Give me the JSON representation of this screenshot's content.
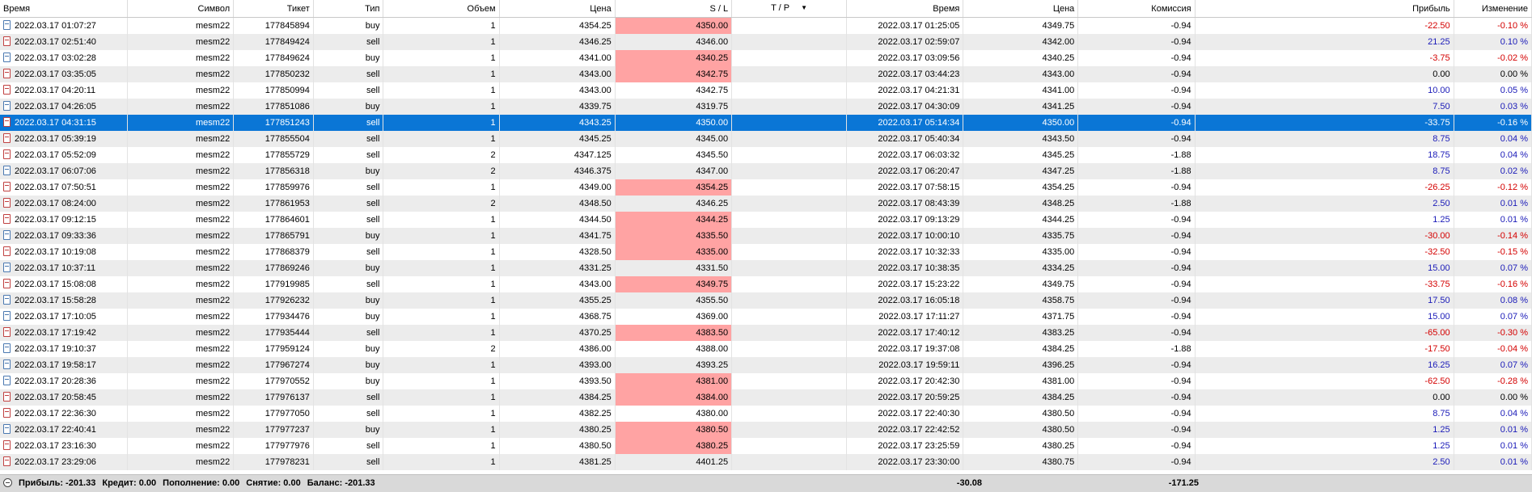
{
  "columns": {
    "time": "Время",
    "symbol": "Символ",
    "ticket": "Тикет",
    "type": "Тип",
    "volume": "Объем",
    "price": "Цена",
    "sl": "S / L",
    "tp": "T / P",
    "close_time": "Время",
    "close_price": "Цена",
    "commission": "Комиссия",
    "profit": "Прибыль",
    "change": "Изменение"
  },
  "sort_icon": "triangle-down-icon",
  "selected_row": 6,
  "colors": {
    "selection": "#0a76d6",
    "sl_hit": "#ffa3a3",
    "negative": "#d40000",
    "positive": "#1a1ab8"
  },
  "rows": [
    {
      "time": "2022.03.17 01:07:27",
      "symbol": "mesm22",
      "ticket": "177845894",
      "type": "buy",
      "volume": "1",
      "price": "4354.25",
      "sl": "4350.00",
      "sl_hit": true,
      "tp": "",
      "close_time": "2022.03.17 01:25:05",
      "close_price": "4349.75",
      "commission": "-0.94",
      "profit": "-22.50",
      "change": "-0.10 %"
    },
    {
      "time": "2022.03.17 02:51:40",
      "symbol": "mesm22",
      "ticket": "177849424",
      "type": "sell",
      "volume": "1",
      "price": "4346.25",
      "sl": "4346.00",
      "sl_hit": false,
      "tp": "",
      "close_time": "2022.03.17 02:59:07",
      "close_price": "4342.00",
      "commission": "-0.94",
      "profit": "21.25",
      "change": "0.10 %"
    },
    {
      "time": "2022.03.17 03:02:28",
      "symbol": "mesm22",
      "ticket": "177849624",
      "type": "buy",
      "volume": "1",
      "price": "4341.00",
      "sl": "4340.25",
      "sl_hit": true,
      "tp": "",
      "close_time": "2022.03.17 03:09:56",
      "close_price": "4340.25",
      "commission": "-0.94",
      "profit": "-3.75",
      "change": "-0.02 %"
    },
    {
      "time": "2022.03.17 03:35:05",
      "symbol": "mesm22",
      "ticket": "177850232",
      "type": "sell",
      "volume": "1",
      "price": "4343.00",
      "sl": "4342.75",
      "sl_hit": true,
      "tp": "",
      "close_time": "2022.03.17 03:44:23",
      "close_price": "4343.00",
      "commission": "-0.94",
      "profit": "0.00",
      "change": "0.00 %"
    },
    {
      "time": "2022.03.17 04:20:11",
      "symbol": "mesm22",
      "ticket": "177850994",
      "type": "sell",
      "volume": "1",
      "price": "4343.00",
      "sl": "4342.75",
      "sl_hit": false,
      "tp": "",
      "close_time": "2022.03.17 04:21:31",
      "close_price": "4341.00",
      "commission": "-0.94",
      "profit": "10.00",
      "change": "0.05 %"
    },
    {
      "time": "2022.03.17 04:26:05",
      "symbol": "mesm22",
      "ticket": "177851086",
      "type": "buy",
      "volume": "1",
      "price": "4339.75",
      "sl": "4319.75",
      "sl_hit": false,
      "tp": "",
      "close_time": "2022.03.17 04:30:09",
      "close_price": "4341.25",
      "commission": "-0.94",
      "profit": "7.50",
      "change": "0.03 %"
    },
    {
      "time": "2022.03.17 04:31:15",
      "symbol": "mesm22",
      "ticket": "177851243",
      "type": "sell",
      "volume": "1",
      "price": "4343.25",
      "sl": "4350.00",
      "sl_hit": true,
      "tp": "",
      "close_time": "2022.03.17 05:14:34",
      "close_price": "4350.00",
      "commission": "-0.94",
      "profit": "-33.75",
      "change": "-0.16 %"
    },
    {
      "time": "2022.03.17 05:39:19",
      "symbol": "mesm22",
      "ticket": "177855504",
      "type": "sell",
      "volume": "1",
      "price": "4345.25",
      "sl": "4345.00",
      "sl_hit": false,
      "tp": "",
      "close_time": "2022.03.17 05:40:34",
      "close_price": "4343.50",
      "commission": "-0.94",
      "profit": "8.75",
      "change": "0.04 %"
    },
    {
      "time": "2022.03.17 05:52:09",
      "symbol": "mesm22",
      "ticket": "177855729",
      "type": "sell",
      "volume": "2",
      "price": "4347.125",
      "sl": "4345.50",
      "sl_hit": false,
      "tp": "",
      "close_time": "2022.03.17 06:03:32",
      "close_price": "4345.25",
      "commission": "-1.88",
      "profit": "18.75",
      "change": "0.04 %"
    },
    {
      "time": "2022.03.17 06:07:06",
      "symbol": "mesm22",
      "ticket": "177856318",
      "type": "buy",
      "volume": "2",
      "price": "4346.375",
      "sl": "4347.00",
      "sl_hit": false,
      "tp": "",
      "close_time": "2022.03.17 06:20:47",
      "close_price": "4347.25",
      "commission": "-1.88",
      "profit": "8.75",
      "change": "0.02 %"
    },
    {
      "time": "2022.03.17 07:50:51",
      "symbol": "mesm22",
      "ticket": "177859976",
      "type": "sell",
      "volume": "1",
      "price": "4349.00",
      "sl": "4354.25",
      "sl_hit": true,
      "tp": "",
      "close_time": "2022.03.17 07:58:15",
      "close_price": "4354.25",
      "commission": "-0.94",
      "profit": "-26.25",
      "change": "-0.12 %"
    },
    {
      "time": "2022.03.17 08:24:00",
      "symbol": "mesm22",
      "ticket": "177861953",
      "type": "sell",
      "volume": "2",
      "price": "4348.50",
      "sl": "4346.25",
      "sl_hit": false,
      "tp": "",
      "close_time": "2022.03.17 08:43:39",
      "close_price": "4348.25",
      "commission": "-1.88",
      "profit": "2.50",
      "change": "0.01 %"
    },
    {
      "time": "2022.03.17 09:12:15",
      "symbol": "mesm22",
      "ticket": "177864601",
      "type": "sell",
      "volume": "1",
      "price": "4344.50",
      "sl": "4344.25",
      "sl_hit": true,
      "tp": "",
      "close_time": "2022.03.17 09:13:29",
      "close_price": "4344.25",
      "commission": "-0.94",
      "profit": "1.25",
      "change": "0.01 %"
    },
    {
      "time": "2022.03.17 09:33:36",
      "symbol": "mesm22",
      "ticket": "177865791",
      "type": "buy",
      "volume": "1",
      "price": "4341.75",
      "sl": "4335.50",
      "sl_hit": true,
      "tp": "",
      "close_time": "2022.03.17 10:00:10",
      "close_price": "4335.75",
      "commission": "-0.94",
      "profit": "-30.00",
      "change": "-0.14 %"
    },
    {
      "time": "2022.03.17 10:19:08",
      "symbol": "mesm22",
      "ticket": "177868379",
      "type": "sell",
      "volume": "1",
      "price": "4328.50",
      "sl": "4335.00",
      "sl_hit": true,
      "tp": "",
      "close_time": "2022.03.17 10:32:33",
      "close_price": "4335.00",
      "commission": "-0.94",
      "profit": "-32.50",
      "change": "-0.15 %"
    },
    {
      "time": "2022.03.17 10:37:11",
      "symbol": "mesm22",
      "ticket": "177869246",
      "type": "buy",
      "volume": "1",
      "price": "4331.25",
      "sl": "4331.50",
      "sl_hit": false,
      "tp": "",
      "close_time": "2022.03.17 10:38:35",
      "close_price": "4334.25",
      "commission": "-0.94",
      "profit": "15.00",
      "change": "0.07 %"
    },
    {
      "time": "2022.03.17 15:08:08",
      "symbol": "mesm22",
      "ticket": "177919985",
      "type": "sell",
      "volume": "1",
      "price": "4343.00",
      "sl": "4349.75",
      "sl_hit": true,
      "tp": "",
      "close_time": "2022.03.17 15:23:22",
      "close_price": "4349.75",
      "commission": "-0.94",
      "profit": "-33.75",
      "change": "-0.16 %"
    },
    {
      "time": "2022.03.17 15:58:28",
      "symbol": "mesm22",
      "ticket": "177926232",
      "type": "buy",
      "volume": "1",
      "price": "4355.25",
      "sl": "4355.50",
      "sl_hit": false,
      "tp": "",
      "close_time": "2022.03.17 16:05:18",
      "close_price": "4358.75",
      "commission": "-0.94",
      "profit": "17.50",
      "change": "0.08 %"
    },
    {
      "time": "2022.03.17 17:10:05",
      "symbol": "mesm22",
      "ticket": "177934476",
      "type": "buy",
      "volume": "1",
      "price": "4368.75",
      "sl": "4369.00",
      "sl_hit": false,
      "tp": "",
      "close_time": "2022.03.17 17:11:27",
      "close_price": "4371.75",
      "commission": "-0.94",
      "profit": "15.00",
      "change": "0.07 %"
    },
    {
      "time": "2022.03.17 17:19:42",
      "symbol": "mesm22",
      "ticket": "177935444",
      "type": "sell",
      "volume": "1",
      "price": "4370.25",
      "sl": "4383.50",
      "sl_hit": true,
      "tp": "",
      "close_time": "2022.03.17 17:40:12",
      "close_price": "4383.25",
      "commission": "-0.94",
      "profit": "-65.00",
      "change": "-0.30 %"
    },
    {
      "time": "2022.03.17 19:10:37",
      "symbol": "mesm22",
      "ticket": "177959124",
      "type": "buy",
      "volume": "2",
      "price": "4386.00",
      "sl": "4388.00",
      "sl_hit": false,
      "tp": "",
      "close_time": "2022.03.17 19:37:08",
      "close_price": "4384.25",
      "commission": "-1.88",
      "profit": "-17.50",
      "change": "-0.04 %"
    },
    {
      "time": "2022.03.17 19:58:17",
      "symbol": "mesm22",
      "ticket": "177967274",
      "type": "buy",
      "volume": "1",
      "price": "4393.00",
      "sl": "4393.25",
      "sl_hit": false,
      "tp": "",
      "close_time": "2022.03.17 19:59:11",
      "close_price": "4396.25",
      "commission": "-0.94",
      "profit": "16.25",
      "change": "0.07 %"
    },
    {
      "time": "2022.03.17 20:28:36",
      "symbol": "mesm22",
      "ticket": "177970552",
      "type": "buy",
      "volume": "1",
      "price": "4393.50",
      "sl": "4381.00",
      "sl_hit": true,
      "tp": "",
      "close_time": "2022.03.17 20:42:30",
      "close_price": "4381.00",
      "commission": "-0.94",
      "profit": "-62.50",
      "change": "-0.28 %"
    },
    {
      "time": "2022.03.17 20:58:45",
      "symbol": "mesm22",
      "ticket": "177976137",
      "type": "sell",
      "volume": "1",
      "price": "4384.25",
      "sl": "4384.00",
      "sl_hit": true,
      "tp": "",
      "close_time": "2022.03.17 20:59:25",
      "close_price": "4384.25",
      "commission": "-0.94",
      "profit": "0.00",
      "change": "0.00 %"
    },
    {
      "time": "2022.03.17 22:36:30",
      "symbol": "mesm22",
      "ticket": "177977050",
      "type": "sell",
      "volume": "1",
      "price": "4382.25",
      "sl": "4380.00",
      "sl_hit": false,
      "tp": "",
      "close_time": "2022.03.17 22:40:30",
      "close_price": "4380.50",
      "commission": "-0.94",
      "profit": "8.75",
      "change": "0.04 %"
    },
    {
      "time": "2022.03.17 22:40:41",
      "symbol": "mesm22",
      "ticket": "177977237",
      "type": "buy",
      "volume": "1",
      "price": "4380.25",
      "sl": "4380.50",
      "sl_hit": true,
      "tp": "",
      "close_time": "2022.03.17 22:42:52",
      "close_price": "4380.50",
      "commission": "-0.94",
      "profit": "1.25",
      "change": "0.01 %"
    },
    {
      "time": "2022.03.17 23:16:30",
      "symbol": "mesm22",
      "ticket": "177977976",
      "type": "sell",
      "volume": "1",
      "price": "4380.50",
      "sl": "4380.25",
      "sl_hit": true,
      "tp": "",
      "close_time": "2022.03.17 23:25:59",
      "close_price": "4380.25",
      "commission": "-0.94",
      "profit": "1.25",
      "change": "0.01 %"
    },
    {
      "time": "2022.03.17 23:29:06",
      "symbol": "mesm22",
      "ticket": "177978231",
      "type": "sell",
      "volume": "1",
      "price": "4381.25",
      "sl": "4401.25",
      "sl_hit": false,
      "tp": "",
      "close_time": "2022.03.17 23:30:00",
      "close_price": "4380.75",
      "commission": "-0.94",
      "profit": "2.50",
      "change": "0.01 %"
    }
  ],
  "footer": {
    "profit": "Прибыль: -201.33",
    "credit": "Кредит: 0.00",
    "deposit": "Пополнение: 0.00",
    "withdrawal": "Снятие: 0.00",
    "balance": "Баланс: -201.33",
    "commission_total": "-30.08",
    "profit_total": "-171.25"
  }
}
